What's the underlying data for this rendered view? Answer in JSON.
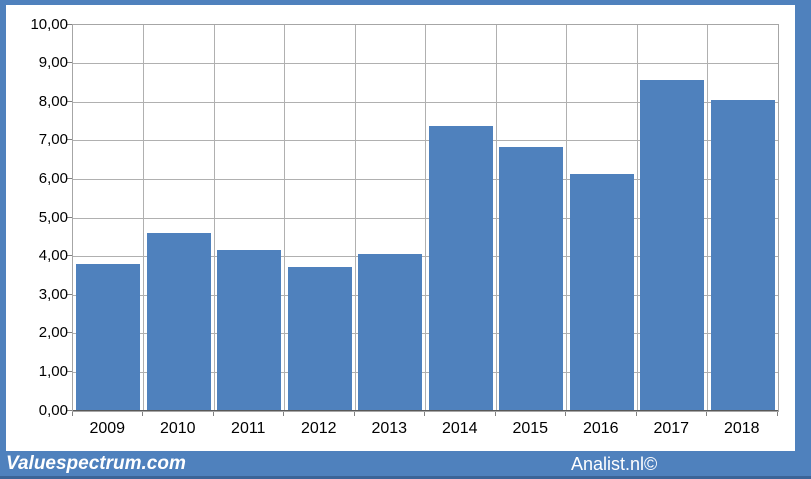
{
  "chart_data": {
    "type": "bar",
    "title": "",
    "xlabel": "",
    "ylabel": "",
    "categories": [
      "2009",
      "2010",
      "2011",
      "2012",
      "2013",
      "2014",
      "2015",
      "2016",
      "2017",
      "2018"
    ],
    "values": [
      3.8,
      4.61,
      4.16,
      3.73,
      4.06,
      7.38,
      6.84,
      6.14,
      8.58,
      8.06
    ],
    "ylim": [
      0,
      10
    ],
    "y_tick_step": 1,
    "y_tick_labels": [
      "0,00",
      "1,00",
      "2,00",
      "3,00",
      "4,00",
      "5,00",
      "6,00",
      "7,00",
      "8,00",
      "9,00",
      "10,00"
    ],
    "grid": true,
    "legend": "none",
    "bar_color": "#4f81bd"
  },
  "footer": {
    "left_text": "Valuespectrum.com",
    "right_text": "Analist.nl©"
  },
  "colors": {
    "frame": "#4f81bd",
    "bar": "#4f81bd",
    "gridline": "#b0b0b0",
    "plot_border": "#a6a6a6",
    "axis_line": "#595959",
    "footer_bg": "#4f81bd",
    "footer_edge": "#3c6497",
    "footer_text": "#ffffff",
    "label_text": "#000000"
  }
}
